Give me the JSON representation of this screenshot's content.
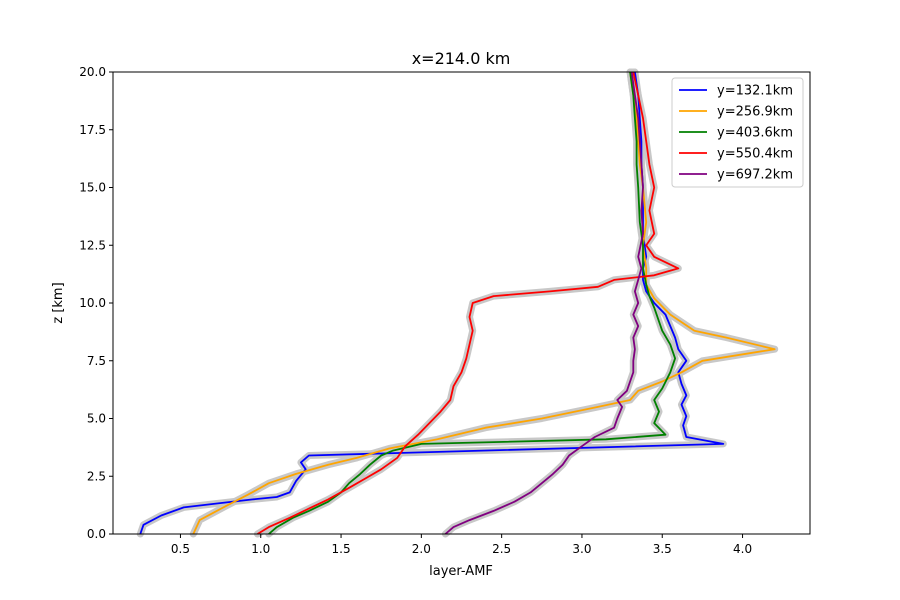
{
  "chart_data": {
    "type": "line",
    "title": "x=214.0 km",
    "xlabel": "layer-AMF",
    "ylabel": "z [km]",
    "xlim": [
      0.08,
      4.42
    ],
    "ylim": [
      0,
      20
    ],
    "xticks": [
      0.5,
      1.0,
      1.5,
      2.0,
      2.5,
      3.0,
      3.5,
      4.0
    ],
    "xtick_labels": [
      "0.5",
      "1.0",
      "1.5",
      "2.0",
      "2.5",
      "3.0",
      "3.5",
      "4.0"
    ],
    "yticks": [
      0,
      2.5,
      5,
      7.5,
      10,
      12.5,
      15,
      17.5,
      20
    ],
    "ytick_labels": [
      "0.0",
      "2.5",
      "5.0",
      "7.5",
      "10.0",
      "12.5",
      "15.0",
      "17.5",
      "20.0"
    ],
    "grid": false,
    "legend_position": "top-right",
    "uncertainty_band_color": "#c8c8c8",
    "series": [
      {
        "name": "y=132.1km",
        "color": "#0000ff",
        "points": [
          [
            0.25,
            0.0
          ],
          [
            0.27,
            0.4
          ],
          [
            0.38,
            0.8
          ],
          [
            0.52,
            1.15
          ],
          [
            0.7,
            1.3
          ],
          [
            0.95,
            1.5
          ],
          [
            1.1,
            1.6
          ],
          [
            1.18,
            1.8
          ],
          [
            1.22,
            2.3
          ],
          [
            1.28,
            2.8
          ],
          [
            1.25,
            3.1
          ],
          [
            1.3,
            3.4
          ],
          [
            3.88,
            3.9
          ],
          [
            3.65,
            4.2
          ],
          [
            3.63,
            4.7
          ],
          [
            3.65,
            5.1
          ],
          [
            3.62,
            5.6
          ],
          [
            3.65,
            6.0
          ],
          [
            3.62,
            6.5
          ],
          [
            3.6,
            7.0
          ],
          [
            3.65,
            7.5
          ],
          [
            3.6,
            8.0
          ],
          [
            3.58,
            8.5
          ],
          [
            3.55,
            9.0
          ],
          [
            3.52,
            9.5
          ],
          [
            3.45,
            10.0
          ],
          [
            3.4,
            10.5
          ],
          [
            3.38,
            11.0
          ],
          [
            3.38,
            11.5
          ],
          [
            3.4,
            12.0
          ],
          [
            3.38,
            13.0
          ],
          [
            3.38,
            14.0
          ],
          [
            3.38,
            15.0
          ],
          [
            3.37,
            16.0
          ],
          [
            3.37,
            17.0
          ],
          [
            3.36,
            18.0
          ],
          [
            3.35,
            19.0
          ],
          [
            3.33,
            20.0
          ]
        ]
      },
      {
        "name": "y=256.9km",
        "color": "#ffa500",
        "points": [
          [
            0.58,
            0.0
          ],
          [
            0.62,
            0.6
          ],
          [
            0.78,
            1.2
          ],
          [
            0.92,
            1.7
          ],
          [
            1.05,
            2.2
          ],
          [
            1.22,
            2.6
          ],
          [
            1.42,
            3.0
          ],
          [
            1.6,
            3.3
          ],
          [
            1.8,
            3.7
          ],
          [
            2.1,
            4.1
          ],
          [
            2.4,
            4.6
          ],
          [
            2.75,
            5.0
          ],
          [
            3.1,
            5.5
          ],
          [
            3.3,
            5.8
          ],
          [
            3.35,
            6.2
          ],
          [
            3.5,
            6.6
          ],
          [
            3.62,
            7.0
          ],
          [
            3.75,
            7.5
          ],
          [
            4.2,
            8.0
          ],
          [
            3.9,
            8.5
          ],
          [
            3.7,
            8.8
          ],
          [
            3.55,
            9.5
          ],
          [
            3.45,
            10.2
          ],
          [
            3.4,
            10.8
          ],
          [
            3.4,
            11.5
          ],
          [
            3.38,
            12.5
          ],
          [
            3.4,
            13.5
          ],
          [
            3.38,
            15.0
          ],
          [
            3.36,
            16.0
          ],
          [
            3.35,
            17.0
          ],
          [
            3.34,
            18.0
          ],
          [
            3.32,
            19.0
          ],
          [
            3.3,
            20.0
          ]
        ]
      },
      {
        "name": "y=403.6km",
        "color": "#008000",
        "points": [
          [
            1.05,
            0.0
          ],
          [
            1.1,
            0.3
          ],
          [
            1.2,
            0.7
          ],
          [
            1.3,
            1.0
          ],
          [
            1.42,
            1.4
          ],
          [
            1.5,
            1.8
          ],
          [
            1.55,
            2.2
          ],
          [
            1.62,
            2.6
          ],
          [
            1.68,
            3.0
          ],
          [
            1.75,
            3.4
          ],
          [
            1.82,
            3.6
          ],
          [
            2.0,
            3.9
          ],
          [
            3.15,
            4.1
          ],
          [
            3.52,
            4.3
          ],
          [
            3.45,
            4.8
          ],
          [
            3.48,
            5.3
          ],
          [
            3.45,
            5.8
          ],
          [
            3.5,
            6.3
          ],
          [
            3.55,
            7.0
          ],
          [
            3.58,
            7.6
          ],
          [
            3.55,
            8.2
          ],
          [
            3.5,
            8.8
          ],
          [
            3.48,
            9.2
          ],
          [
            3.45,
            9.8
          ],
          [
            3.42,
            10.3
          ],
          [
            3.4,
            10.8
          ],
          [
            3.38,
            11.5
          ],
          [
            3.38,
            12.5
          ],
          [
            3.36,
            13.5
          ],
          [
            3.35,
            15.0
          ],
          [
            3.34,
            16.0
          ],
          [
            3.34,
            17.0
          ],
          [
            3.33,
            18.0
          ],
          [
            3.32,
            19.0
          ],
          [
            3.3,
            20.0
          ]
        ]
      },
      {
        "name": "y=550.4km",
        "color": "#ff0000",
        "points": [
          [
            0.98,
            0.0
          ],
          [
            1.05,
            0.3
          ],
          [
            1.18,
            0.7
          ],
          [
            1.3,
            1.1
          ],
          [
            1.42,
            1.5
          ],
          [
            1.55,
            2.0
          ],
          [
            1.65,
            2.4
          ],
          [
            1.75,
            2.8
          ],
          [
            1.85,
            3.3
          ],
          [
            1.9,
            3.8
          ],
          [
            1.98,
            4.3
          ],
          [
            2.05,
            4.8
          ],
          [
            2.12,
            5.3
          ],
          [
            2.18,
            5.8
          ],
          [
            2.2,
            6.4
          ],
          [
            2.25,
            7.0
          ],
          [
            2.28,
            7.6
          ],
          [
            2.3,
            8.2
          ],
          [
            2.32,
            8.8
          ],
          [
            2.3,
            9.4
          ],
          [
            2.32,
            10.0
          ],
          [
            2.45,
            10.3
          ],
          [
            2.8,
            10.5
          ],
          [
            3.1,
            10.7
          ],
          [
            3.2,
            11.0
          ],
          [
            3.45,
            11.2
          ],
          [
            3.6,
            11.5
          ],
          [
            3.45,
            12.0
          ],
          [
            3.4,
            12.5
          ],
          [
            3.45,
            13.0
          ],
          [
            3.42,
            14.0
          ],
          [
            3.45,
            15.0
          ],
          [
            3.42,
            16.0
          ],
          [
            3.4,
            17.0
          ],
          [
            3.38,
            18.0
          ],
          [
            3.35,
            19.0
          ],
          [
            3.32,
            20.0
          ]
        ]
      },
      {
        "name": "y=697.2km",
        "color": "#800080",
        "points": [
          [
            2.15,
            0.0
          ],
          [
            2.2,
            0.3
          ],
          [
            2.3,
            0.6
          ],
          [
            2.45,
            1.0
          ],
          [
            2.58,
            1.4
          ],
          [
            2.68,
            1.8
          ],
          [
            2.75,
            2.2
          ],
          [
            2.82,
            2.6
          ],
          [
            2.88,
            3.0
          ],
          [
            2.92,
            3.4
          ],
          [
            3.0,
            3.8
          ],
          [
            3.08,
            4.2
          ],
          [
            3.2,
            4.6
          ],
          [
            3.22,
            5.0
          ],
          [
            3.25,
            5.5
          ],
          [
            3.22,
            5.8
          ],
          [
            3.28,
            6.2
          ],
          [
            3.3,
            6.6
          ],
          [
            3.32,
            7.0
          ],
          [
            3.32,
            7.5
          ],
          [
            3.33,
            8.0
          ],
          [
            3.32,
            8.5
          ],
          [
            3.35,
            9.0
          ],
          [
            3.32,
            9.5
          ],
          [
            3.35,
            10.0
          ],
          [
            3.33,
            10.5
          ],
          [
            3.35,
            11.0
          ],
          [
            3.37,
            11.5
          ],
          [
            3.35,
            12.0
          ],
          [
            3.38,
            13.0
          ],
          [
            3.37,
            14.0
          ],
          [
            3.38,
            15.0
          ],
          [
            3.37,
            16.0
          ],
          [
            3.36,
            17.0
          ],
          [
            3.35,
            18.0
          ],
          [
            3.33,
            19.0
          ],
          [
            3.31,
            20.0
          ]
        ]
      }
    ]
  }
}
